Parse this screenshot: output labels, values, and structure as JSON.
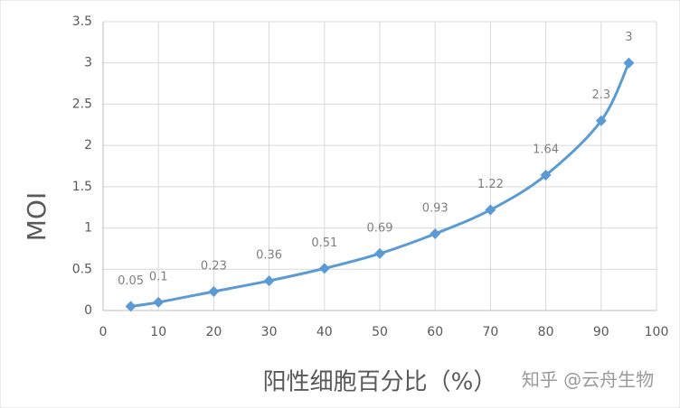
{
  "chart_data": {
    "type": "line",
    "smooth": true,
    "x_label": "阳性细胞百分比（%）",
    "y_label": "MOI",
    "watermark": "知乎 @云舟生物",
    "x": [
      5,
      10,
      20,
      30,
      40,
      50,
      60,
      70,
      80,
      90,
      95
    ],
    "values": [
      0.05,
      0.1,
      0.23,
      0.36,
      0.51,
      0.69,
      0.93,
      1.22,
      1.64,
      2.3,
      3
    ],
    "color": "#5b9bd5",
    "xlim": [
      0,
      100
    ],
    "xticks": [
      0,
      10,
      20,
      30,
      40,
      50,
      60,
      70,
      80,
      90,
      100
    ],
    "ylim": [
      0,
      3.5
    ],
    "yticks": [
      0,
      0.5,
      1,
      1.5,
      2,
      2.5,
      3,
      3.5
    ],
    "grid": true
  }
}
